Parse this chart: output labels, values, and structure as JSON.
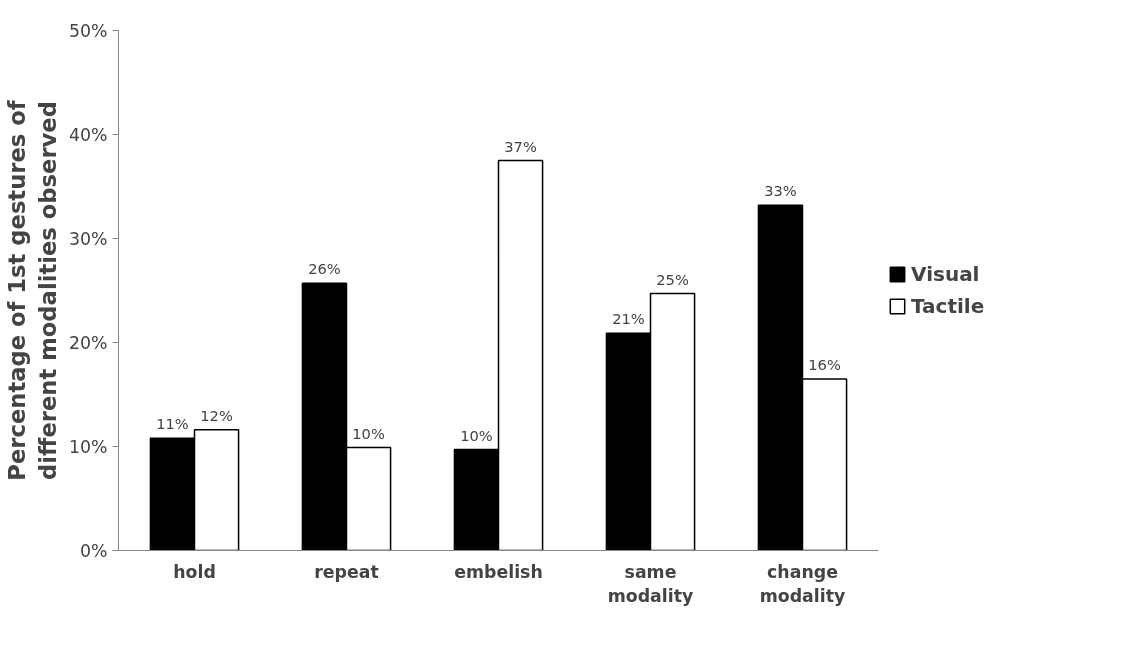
{
  "chart_data": {
    "type": "bar",
    "ylabel": "Percentage of 1st gestures of different modalities observed",
    "categories": [
      "hold",
      "repeat",
      "embelish",
      "same\nmodality",
      "change\nmodality"
    ],
    "series": [
      {
        "name": "Visual",
        "color": "#000000",
        "values": [
          10.8,
          25.7,
          9.7,
          20.9,
          33.2
        ],
        "value_labels": [
          "11%",
          "26%",
          "10%",
          "21%",
          "33%"
        ]
      },
      {
        "name": "Tactile",
        "color": "#ffffff",
        "values": [
          11.6,
          9.9,
          37.5,
          24.7,
          16.5
        ],
        "value_labels": [
          "12%",
          "10%",
          "37%",
          "25%",
          "16%"
        ]
      }
    ],
    "ylim": [
      0,
      50
    ],
    "yticks": [
      {
        "value": 0,
        "label": "0%"
      },
      {
        "value": 10,
        "label": "10%"
      },
      {
        "value": 20,
        "label": "20%"
      },
      {
        "value": 30,
        "label": "30%"
      },
      {
        "value": 40,
        "label": "40%"
      },
      {
        "value": 50,
        "label": "50%"
      }
    ],
    "grid": false,
    "legend": "right"
  }
}
